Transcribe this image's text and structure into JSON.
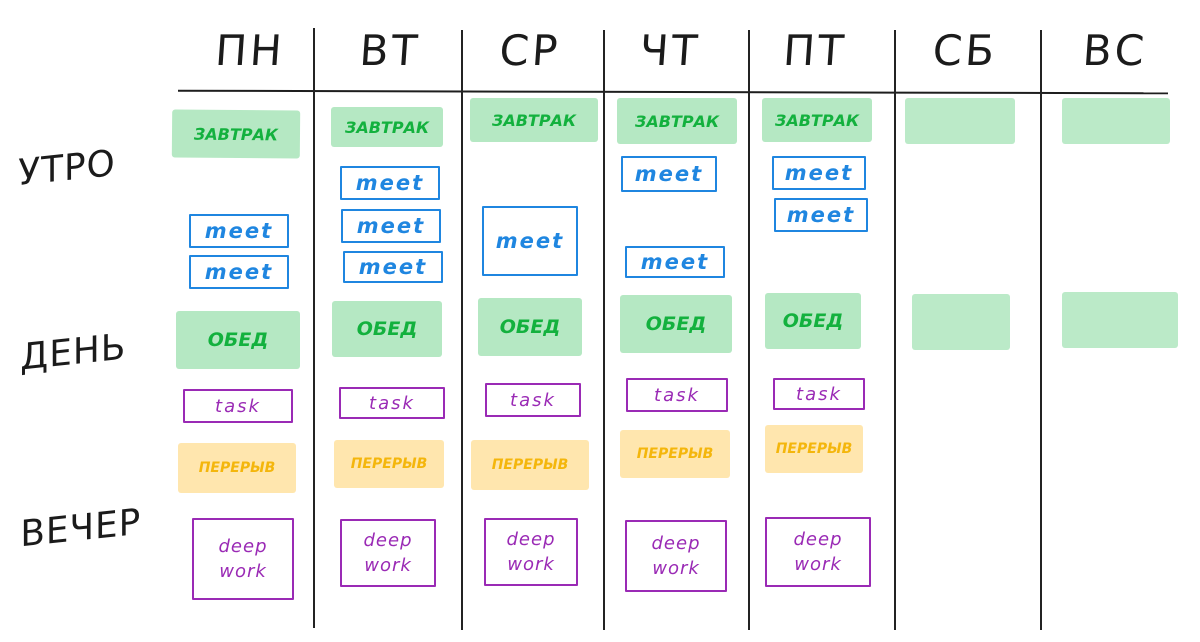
{
  "colors": {
    "ink": "#1b1b1b",
    "green": "#13b13e",
    "blue": "#1f86e0",
    "purple": "#9a2ab5",
    "yellow": "#f4b60c"
  },
  "days": [
    "ПН",
    "ВТ",
    "СР",
    "ЧТ",
    "ПТ",
    "СБ",
    "ВС"
  ],
  "periods": [
    "УТРО",
    "ДЕНЬ",
    "ВЕЧЕР"
  ],
  "labels": {
    "breakfast": "ЗАВТРАК",
    "meet": "meet",
    "lunch": "ОБЕД",
    "task": "task",
    "break": "ПЕРЕРЫВ",
    "deep_work_1": "deep",
    "deep_work_2": "work"
  }
}
